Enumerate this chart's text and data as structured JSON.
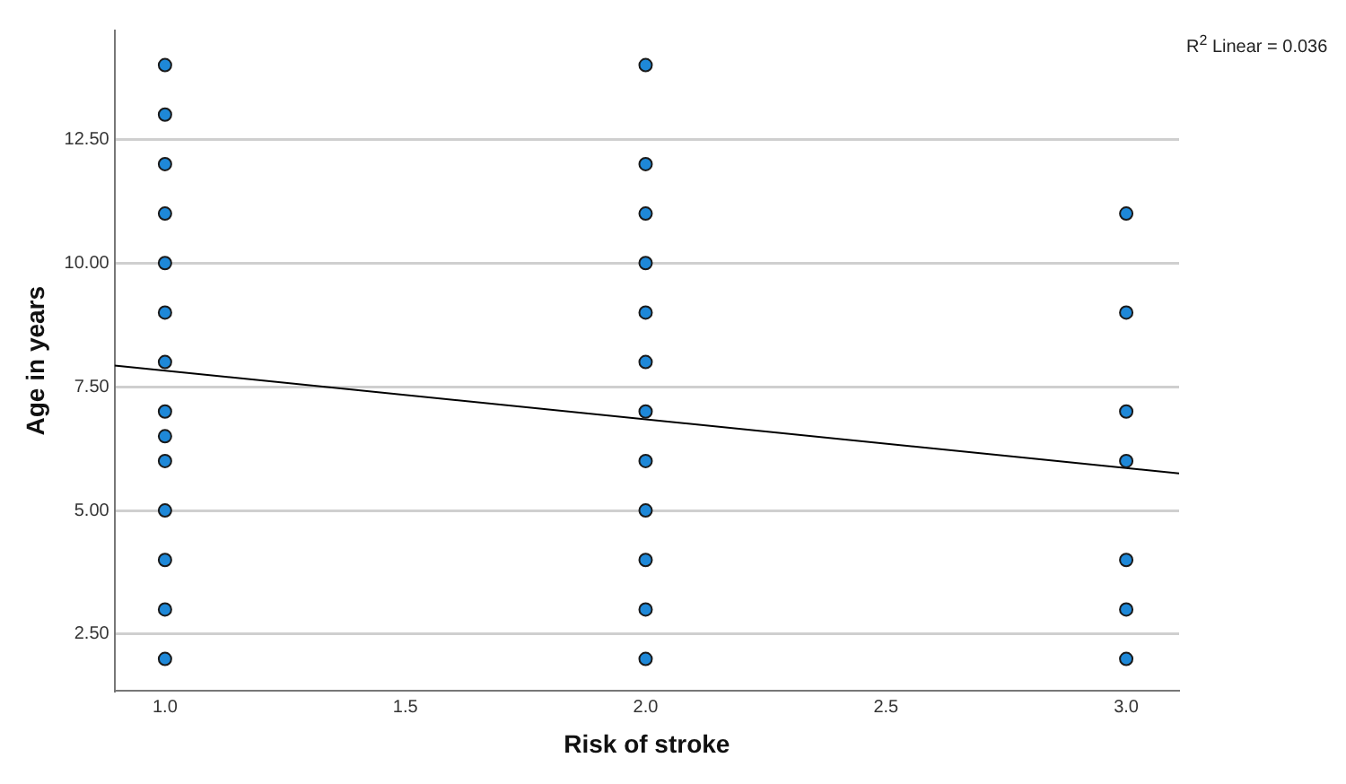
{
  "chart_data": {
    "type": "scatter",
    "xlabel": "Risk of stroke",
    "ylabel": "Age in years",
    "annotations": [
      "R$^{2}$ Linear = 0.036"
    ],
    "xlim": [
      0.895,
      3.11
    ],
    "ylim": [
      1.35,
      14.7
    ],
    "xticks": [
      {
        "value": 1,
        "label": "1.0"
      },
      {
        "value": 1.5,
        "label": "1.5"
      },
      {
        "value": 2,
        "label": "2.0"
      },
      {
        "value": 2.5,
        "label": "2.5"
      },
      {
        "value": 3,
        "label": "3.0"
      }
    ],
    "yticks": [
      {
        "value": 2.5,
        "label": "2.50"
      },
      {
        "value": 5,
        "label": "5.00"
      },
      {
        "value": 7.5,
        "label": "7.50"
      },
      {
        "value": 10,
        "label": "10.00"
      },
      {
        "value": 12.5,
        "label": "12.50"
      }
    ],
    "grid": "y",
    "legend": false,
    "marker": "circle",
    "series": [
      {
        "color": "#1e88d8",
        "x": [
          1,
          1,
          1,
          1,
          1,
          1,
          1,
          1,
          1,
          1,
          1,
          1,
          1,
          1,
          2,
          2,
          2,
          2,
          2,
          2,
          2,
          2,
          2,
          2,
          2,
          2,
          3,
          3,
          3,
          3,
          3,
          3,
          3
        ],
        "values": [
          2,
          3,
          4,
          5,
          6,
          6.5,
          7,
          8,
          9,
          10,
          11,
          12,
          13,
          14,
          2,
          3,
          4,
          5,
          6,
          7,
          8,
          9,
          10,
          11,
          12,
          14,
          2,
          3,
          4,
          6,
          7,
          9,
          11
        ]
      },
      {
        "type": "line",
        "color": "#000000",
        "marker": "none",
        "x": [
          0.895,
          3.11
        ],
        "values": [
          7.93,
          5.75
        ]
      }
    ]
  }
}
